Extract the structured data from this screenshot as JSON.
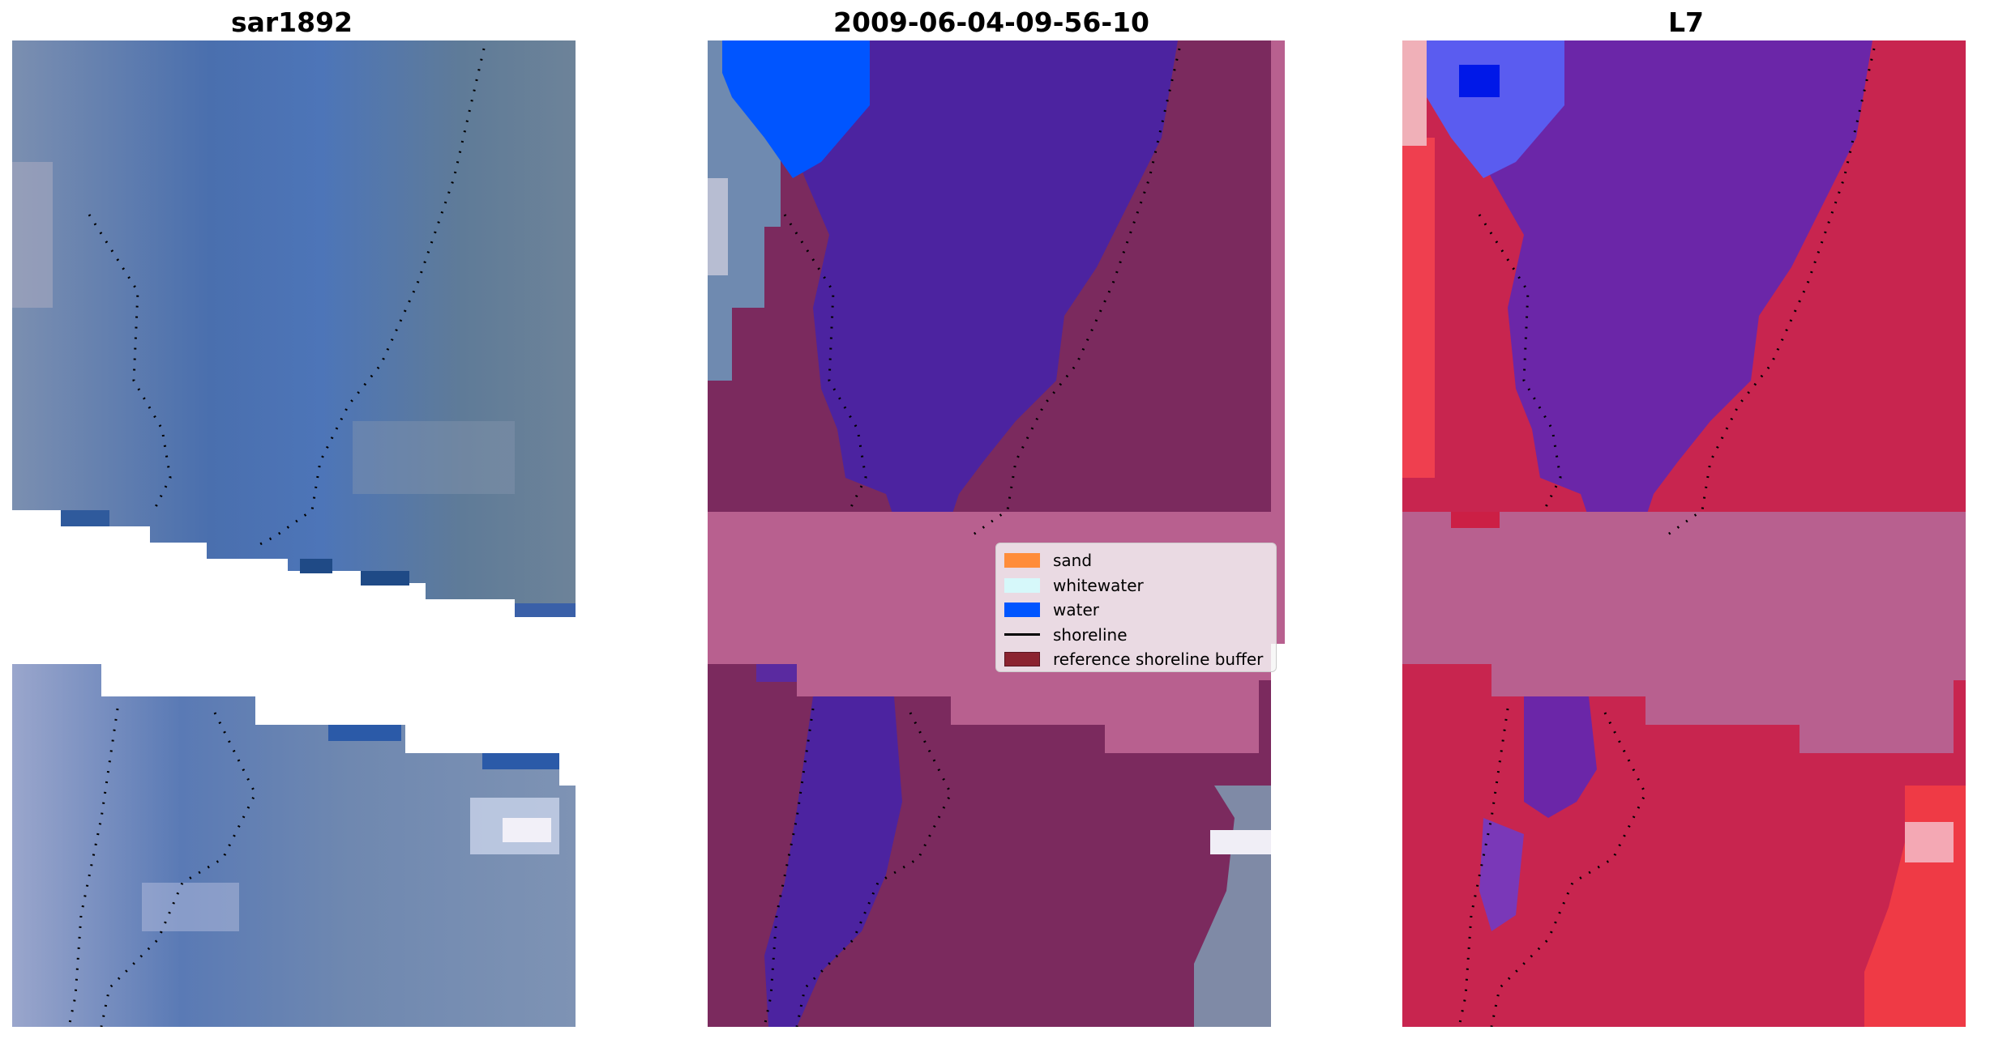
{
  "panels": [
    {
      "title": "sar1892"
    },
    {
      "title": "2009-06-04-09-56-10"
    },
    {
      "title": "L7"
    }
  ],
  "legend": {
    "items": [
      {
        "label": "sand",
        "type": "patch",
        "color": "#ff8c3a"
      },
      {
        "label": "whitewater",
        "type": "patch",
        "color": "#d6f8fa"
      },
      {
        "label": "water",
        "type": "patch",
        "color": "#0055ff"
      },
      {
        "label": "shoreline",
        "type": "line",
        "color": "#000000"
      },
      {
        "label": "reference shoreline buffer",
        "type": "patch",
        "color": "#8b2330"
      }
    ]
  },
  "colors": {
    "rgb_base": "#5a7aa8",
    "rgb_channel": "#3f6fb5",
    "classified_land": "#7b2a5e",
    "classified_water": "#4c23a0",
    "buffer": "#b8608f",
    "index_land": "#c8254f",
    "index_water": "#6b26a8"
  }
}
